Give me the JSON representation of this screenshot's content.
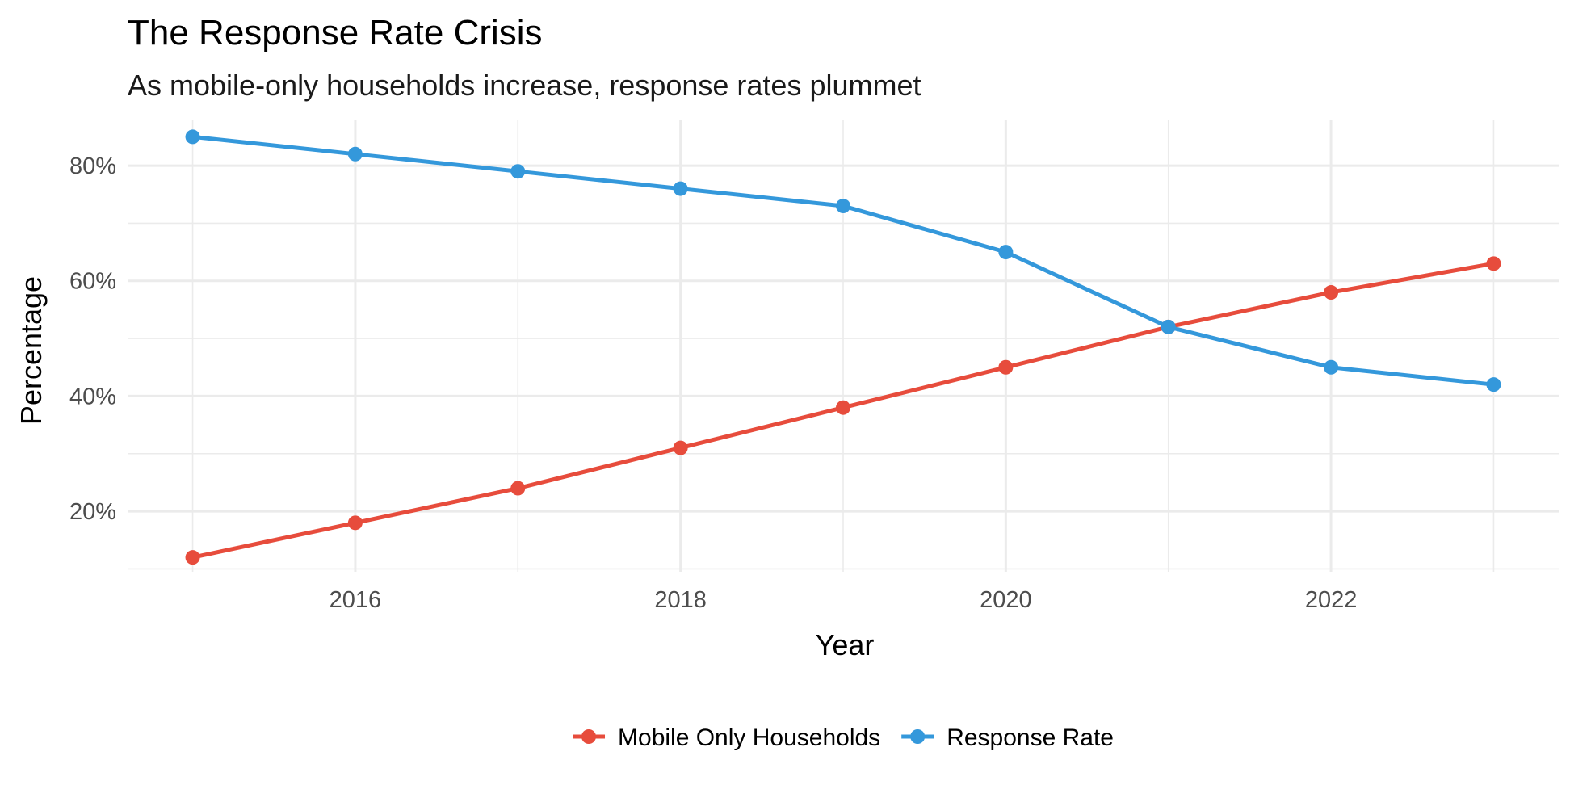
{
  "chart_data": {
    "type": "line",
    "title": "The Response Rate Crisis",
    "subtitle": "As mobile-only households increase, response rates plummet",
    "xlabel": "Year",
    "ylabel": "Percentage",
    "x": [
      2015,
      2016,
      2017,
      2018,
      2019,
      2020,
      2021,
      2022,
      2023
    ],
    "xlim": [
      2014.6,
      2023.4
    ],
    "ylim": [
      9.5,
      88
    ],
    "x_ticks": [
      2016,
      2018,
      2020,
      2022
    ],
    "x_tick_labels": [
      "2016",
      "2018",
      "2020",
      "2022"
    ],
    "y_ticks": [
      20,
      40,
      60,
      80
    ],
    "y_tick_labels": [
      "20%",
      "40%",
      "60%",
      "80%"
    ],
    "grid": true,
    "legend_position": "bottom",
    "series": [
      {
        "name": "Mobile Only Households",
        "color": "#e74c3c",
        "values": [
          12,
          18,
          24,
          31,
          38,
          45,
          52,
          58,
          63
        ]
      },
      {
        "name": "Response Rate",
        "color": "#3498db",
        "values": [
          85,
          82,
          79,
          76,
          73,
          65,
          52,
          45,
          42
        ]
      }
    ]
  }
}
